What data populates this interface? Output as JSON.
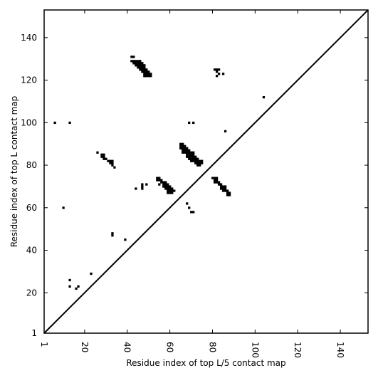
{
  "chart_data": {
    "type": "scatter",
    "xlabel": "Residue index of top L/5 contact map",
    "ylabel": "Residue index of top L contact map",
    "xlim": [
      1,
      153
    ],
    "ylim": [
      1,
      153
    ],
    "x_ticks": [
      1,
      20,
      40,
      60,
      80,
      100,
      120,
      140
    ],
    "y_ticks": [
      1,
      20,
      40,
      60,
      80,
      100,
      120,
      140
    ],
    "x_tick_labels": [
      "1",
      "20",
      "40",
      "60",
      "80",
      "100",
      "120",
      "140"
    ],
    "y_tick_labels": [
      "1",
      "20",
      "40",
      "60",
      "80",
      "100",
      "120",
      "140"
    ],
    "grid": false,
    "diagonal": true,
    "series": [
      {
        "color": "#000000",
        "points": [
          [
            42,
            131
          ],
          [
            43,
            131
          ],
          [
            42,
            129
          ],
          [
            43,
            129
          ],
          [
            44,
            129
          ],
          [
            45,
            129
          ],
          [
            46,
            129
          ],
          [
            43,
            128
          ],
          [
            44,
            128
          ],
          [
            45,
            128
          ],
          [
            46,
            128
          ],
          [
            47,
            128
          ],
          [
            44,
            127
          ],
          [
            45,
            127
          ],
          [
            46,
            127
          ],
          [
            47,
            127
          ],
          [
            48,
            127
          ],
          [
            45,
            126
          ],
          [
            46,
            126
          ],
          [
            47,
            126
          ],
          [
            48,
            126
          ],
          [
            46,
            125
          ],
          [
            47,
            125
          ],
          [
            48,
            125
          ],
          [
            49,
            125
          ],
          [
            47,
            124
          ],
          [
            48,
            124
          ],
          [
            49,
            124
          ],
          [
            50,
            124
          ],
          [
            48,
            123
          ],
          [
            49,
            123
          ],
          [
            50,
            123
          ],
          [
            51,
            123
          ],
          [
            48,
            122
          ],
          [
            49,
            122
          ],
          [
            50,
            122
          ],
          [
            51,
            122
          ],
          [
            81,
            125
          ],
          [
            82,
            125
          ],
          [
            83,
            125
          ],
          [
            82,
            124
          ],
          [
            83,
            123
          ],
          [
            82,
            122
          ],
          [
            85,
            123
          ],
          [
            104,
            112
          ],
          [
            6,
            100
          ],
          [
            13,
            100
          ],
          [
            69,
            100
          ],
          [
            71,
            100
          ],
          [
            86,
            96
          ],
          [
            65,
            90
          ],
          [
            66,
            90
          ],
          [
            65,
            89
          ],
          [
            66,
            89
          ],
          [
            67,
            89
          ],
          [
            65,
            88
          ],
          [
            66,
            88
          ],
          [
            67,
            88
          ],
          [
            68,
            88
          ],
          [
            66,
            87
          ],
          [
            67,
            87
          ],
          [
            68,
            87
          ],
          [
            69,
            87
          ],
          [
            66,
            86
          ],
          [
            67,
            86
          ],
          [
            68,
            86
          ],
          [
            69,
            86
          ],
          [
            70,
            86
          ],
          [
            71,
            86
          ],
          [
            68,
            85
          ],
          [
            69,
            85
          ],
          [
            70,
            85
          ],
          [
            71,
            85
          ],
          [
            68,
            84
          ],
          [
            69,
            84
          ],
          [
            70,
            84
          ],
          [
            71,
            84
          ],
          [
            72,
            84
          ],
          [
            69,
            83
          ],
          [
            70,
            83
          ],
          [
            71,
            83
          ],
          [
            72,
            83
          ],
          [
            73,
            83
          ],
          [
            70,
            82
          ],
          [
            71,
            82
          ],
          [
            72,
            82
          ],
          [
            73,
            82
          ],
          [
            74,
            82
          ],
          [
            75,
            82
          ],
          [
            72,
            81
          ],
          [
            73,
            81
          ],
          [
            74,
            81
          ],
          [
            75,
            81
          ],
          [
            73,
            80
          ],
          [
            74,
            80
          ],
          [
            26,
            86
          ],
          [
            28,
            85
          ],
          [
            29,
            85
          ],
          [
            28,
            84
          ],
          [
            29,
            84
          ],
          [
            29,
            83
          ],
          [
            30,
            83
          ],
          [
            31,
            82
          ],
          [
            32,
            82
          ],
          [
            33,
            82
          ],
          [
            32,
            81
          ],
          [
            33,
            81
          ],
          [
            33,
            80
          ],
          [
            34,
            79
          ],
          [
            54,
            74
          ],
          [
            55,
            74
          ],
          [
            54,
            73
          ],
          [
            55,
            73
          ],
          [
            56,
            73
          ],
          [
            56,
            72
          ],
          [
            57,
            72
          ],
          [
            58,
            72
          ],
          [
            55,
            71
          ],
          [
            57,
            71
          ],
          [
            58,
            71
          ],
          [
            59,
            71
          ],
          [
            57,
            70
          ],
          [
            58,
            70
          ],
          [
            59,
            70
          ],
          [
            60,
            70
          ],
          [
            58,
            69
          ],
          [
            59,
            69
          ],
          [
            60,
            69
          ],
          [
            61,
            69
          ],
          [
            59,
            68
          ],
          [
            60,
            68
          ],
          [
            61,
            68
          ],
          [
            62,
            68
          ],
          [
            59,
            67
          ],
          [
            60,
            67
          ],
          [
            61,
            67
          ],
          [
            47,
            71
          ],
          [
            49,
            71
          ],
          [
            44,
            69
          ],
          [
            47,
            70
          ],
          [
            47,
            69
          ],
          [
            80,
            74
          ],
          [
            81,
            74
          ],
          [
            82,
            74
          ],
          [
            81,
            73
          ],
          [
            82,
            73
          ],
          [
            81,
            72
          ],
          [
            82,
            72
          ],
          [
            83,
            72
          ],
          [
            83,
            71
          ],
          [
            84,
            71
          ],
          [
            84,
            70
          ],
          [
            85,
            70
          ],
          [
            86,
            70
          ],
          [
            84,
            69
          ],
          [
            85,
            69
          ],
          [
            86,
            69
          ],
          [
            85,
            68
          ],
          [
            86,
            68
          ],
          [
            87,
            68
          ],
          [
            87,
            67
          ],
          [
            88,
            67
          ],
          [
            87,
            66
          ],
          [
            88,
            66
          ],
          [
            68,
            62
          ],
          [
            69,
            60
          ],
          [
            70,
            58
          ],
          [
            71,
            58
          ],
          [
            10,
            60
          ],
          [
            33,
            48
          ],
          [
            33,
            47
          ],
          [
            39,
            45
          ],
          [
            23,
            29
          ],
          [
            13,
            26
          ],
          [
            13,
            23
          ],
          [
            17,
            23
          ],
          [
            16,
            22
          ]
        ]
      }
    ]
  }
}
